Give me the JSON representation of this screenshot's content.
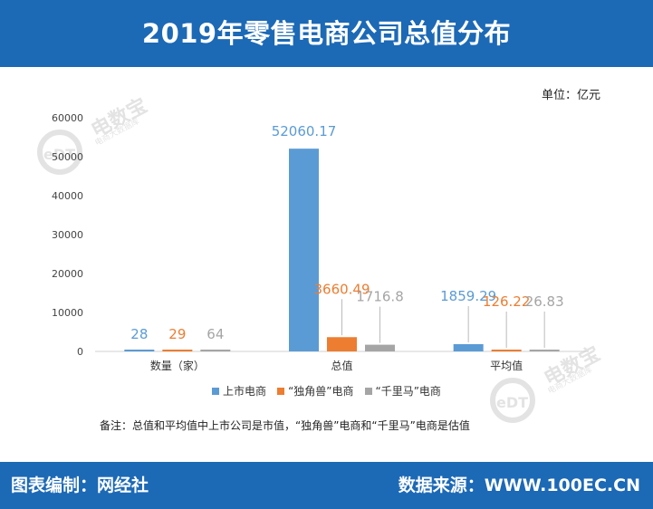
{
  "header": {
    "title": "2019年零售电商公司总值分布"
  },
  "unit_label": "单位：亿元",
  "note": "备注：总值和平均值中上市公司是市值，“独角兽”电商和“千里马”电商是估值",
  "footer": {
    "left": "图表编制：网经社",
    "right": "数据来源：WWW.100EC.CN"
  },
  "watermark": {
    "brand": "电数宝",
    "sub": "电商大数据库",
    "logo": "eDT"
  },
  "colors": {
    "header_bg": "#1c69b6",
    "series_1": "#5b9bd5",
    "series_2": "#ed7d31",
    "series_3": "#a5a5a5"
  },
  "chart_data": {
    "type": "bar",
    "categories": [
      "数量（家）",
      "总值",
      "平均值"
    ],
    "series": [
      {
        "name": "上市电商",
        "values": [
          28,
          52060.17,
          1859.29
        ],
        "labels": [
          "28",
          "52060.17",
          "1859.29"
        ],
        "color": "#5b9bd5"
      },
      {
        "name": "“独角兽”电商",
        "values": [
          29,
          3660.49,
          126.22
        ],
        "labels": [
          "29",
          "3660.49",
          "126.22"
        ],
        "color": "#ed7d31"
      },
      {
        "name": "“千里马”电商",
        "values": [
          64,
          1716.8,
          26.83
        ],
        "labels": [
          "64",
          "1716.8",
          "26.83"
        ],
        "color": "#a5a5a5"
      }
    ],
    "ylim": [
      0,
      60000
    ],
    "yticks": [
      0,
      10000,
      20000,
      30000,
      40000,
      50000,
      60000
    ],
    "grid": false,
    "legend": "bottom"
  }
}
